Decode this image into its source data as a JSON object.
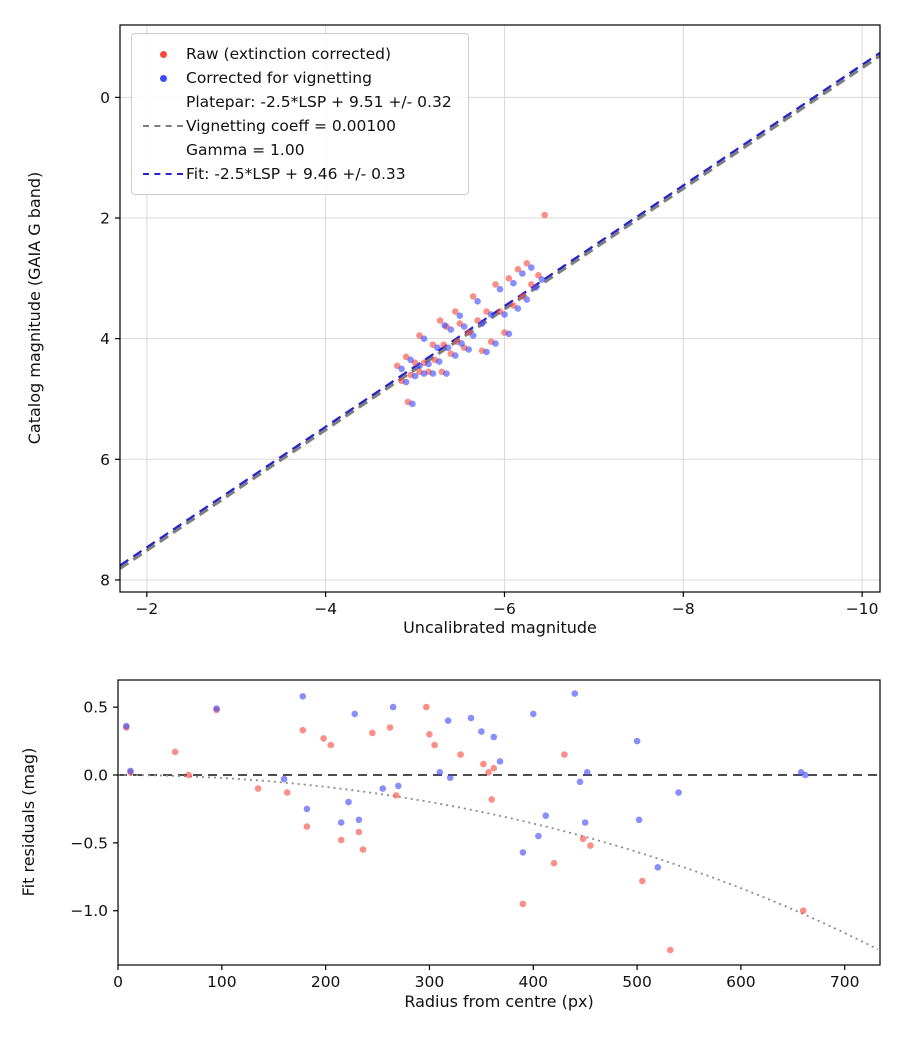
{
  "colors": {
    "raw_point": "#f94a3d",
    "corrected_point": "#3d4af9",
    "platepar_line": "#7f7f7f",
    "fit_line": "#2424cc",
    "grid": "#d9d9d9",
    "axis": "#000000",
    "tick_text": "#111111",
    "zero_line": "#4d4d4d",
    "model_curve": "#8c8c8c",
    "background": "#ffffff"
  },
  "legend": {
    "raw_label": "Raw (extinction corrected)",
    "corrected_label": "Corrected for vignetting",
    "platepar_label_line1": "Platepar: -2.5*LSP + 9.51 +/- 0.32",
    "platepar_label_line2": "Vignetting coeff = 0.00100",
    "platepar_label_line3": "Gamma = 1.00",
    "fit_label": "Fit: -2.5*LSP + 9.46 +/- 0.33"
  },
  "chart_data": [
    {
      "type": "scatter",
      "name": "photometric-fit",
      "xlabel": "Uncalibrated magnitude",
      "ylabel": "Catalog magnitude (GAIA G band)",
      "xlim": [
        -1.7,
        -10.2
      ],
      "ylim_top_to_bottom": [
        -1.2,
        8.2
      ],
      "x_inverted": true,
      "y_inverted": true,
      "grid": true,
      "x_ticks": [
        {
          "v": -2,
          "label": "−2"
        },
        {
          "v": -4,
          "label": "−4"
        },
        {
          "v": -6,
          "label": "−6"
        },
        {
          "v": -8,
          "label": "−8"
        },
        {
          "v": -10,
          "label": "−10"
        }
      ],
      "y_ticks": [
        {
          "v": 0,
          "label": "0"
        },
        {
          "v": 2,
          "label": "2"
        },
        {
          "v": 4,
          "label": "4"
        },
        {
          "v": 6,
          "label": "6"
        },
        {
          "v": 8,
          "label": "8"
        }
      ],
      "lines": [
        {
          "name": "platepar",
          "label": "Platepar: -2.5*LSP + 9.51 +/- 0.32, Vignetting coeff = 0.00100, Gamma = 1.00",
          "slope": 1,
          "intercept": 9.51,
          "color_key": "platepar_line",
          "width": 3.2
        },
        {
          "name": "fit",
          "label": "Fit: -2.5*LSP + 9.46 +/- 0.33",
          "slope": 1,
          "intercept": 9.46,
          "color_key": "fit_line",
          "width": 2.2
        }
      ],
      "series": [
        {
          "name": "Raw (extinction corrected)",
          "color_key": "raw_point",
          "points": [
            [
              -4.8,
              4.45
            ],
            [
              -4.85,
              4.7
            ],
            [
              -4.9,
              4.3
            ],
            [
              -4.95,
              4.6
            ],
            [
              -4.92,
              5.05
            ],
            [
              -5.0,
              4.4
            ],
            [
              -5.05,
              4.55
            ],
            [
              -5.05,
              3.95
            ],
            [
              -5.1,
              4.4
            ],
            [
              -5.15,
              4.55
            ],
            [
              -5.2,
              4.1
            ],
            [
              -5.22,
              4.35
            ],
            [
              -5.28,
              3.7
            ],
            [
              -5.3,
              4.55
            ],
            [
              -5.32,
              4.1
            ],
            [
              -5.35,
              3.8
            ],
            [
              -5.4,
              4.25
            ],
            [
              -5.45,
              3.55
            ],
            [
              -5.47,
              4.05
            ],
            [
              -5.5,
              3.75
            ],
            [
              -5.55,
              4.15
            ],
            [
              -5.6,
              3.9
            ],
            [
              -5.65,
              3.3
            ],
            [
              -5.7,
              3.7
            ],
            [
              -5.75,
              4.2
            ],
            [
              -5.8,
              3.55
            ],
            [
              -5.85,
              4.05
            ],
            [
              -5.9,
              3.1
            ],
            [
              -5.95,
              3.55
            ],
            [
              -6.0,
              3.9
            ],
            [
              -6.05,
              3.0
            ],
            [
              -6.1,
              3.45
            ],
            [
              -6.15,
              2.85
            ],
            [
              -6.2,
              3.3
            ],
            [
              -6.25,
              2.75
            ],
            [
              -6.3,
              3.1
            ],
            [
              -6.38,
              2.95
            ],
            [
              -6.45,
              1.95
            ]
          ]
        },
        {
          "name": "Corrected for vignetting",
          "color_key": "corrected_point",
          "points": [
            [
              -4.85,
              4.5
            ],
            [
              -4.9,
              4.72
            ],
            [
              -4.95,
              4.35
            ],
            [
              -5.0,
              4.62
            ],
            [
              -4.97,
              5.08
            ],
            [
              -5.05,
              4.45
            ],
            [
              -5.1,
              4.58
            ],
            [
              -5.1,
              4.0
            ],
            [
              -5.15,
              4.42
            ],
            [
              -5.2,
              4.58
            ],
            [
              -5.25,
              4.15
            ],
            [
              -5.27,
              4.38
            ],
            [
              -5.33,
              3.78
            ],
            [
              -5.35,
              4.58
            ],
            [
              -5.37,
              4.15
            ],
            [
              -5.4,
              3.85
            ],
            [
              -5.45,
              4.28
            ],
            [
              -5.5,
              3.62
            ],
            [
              -5.52,
              4.08
            ],
            [
              -5.55,
              3.8
            ],
            [
              -5.6,
              4.18
            ],
            [
              -5.65,
              3.95
            ],
            [
              -5.7,
              3.38
            ],
            [
              -5.75,
              3.75
            ],
            [
              -5.8,
              4.22
            ],
            [
              -5.85,
              3.6
            ],
            [
              -5.9,
              4.08
            ],
            [
              -5.95,
              3.18
            ],
            [
              -6.0,
              3.6
            ],
            [
              -6.05,
              3.92
            ],
            [
              -6.1,
              3.08
            ],
            [
              -6.15,
              3.5
            ],
            [
              -6.2,
              2.92
            ],
            [
              -6.25,
              3.35
            ],
            [
              -6.3,
              2.82
            ],
            [
              -6.35,
              3.15
            ],
            [
              -6.42,
              3.02
            ]
          ]
        }
      ]
    },
    {
      "type": "scatter",
      "name": "fit-residuals-vs-radius",
      "xlabel": "Radius from centre (px)",
      "ylabel": "Fit residuals (mag)",
      "xlim": [
        0,
        734
      ],
      "ylim_top_to_bottom": [
        0.7,
        -1.4
      ],
      "grid": false,
      "x_ticks": [
        {
          "v": 0,
          "label": "0"
        },
        {
          "v": 100,
          "label": "100"
        },
        {
          "v": 200,
          "label": "200"
        },
        {
          "v": 300,
          "label": "300"
        },
        {
          "v": 400,
          "label": "400"
        },
        {
          "v": 500,
          "label": "500"
        },
        {
          "v": 600,
          "label": "600"
        },
        {
          "v": 700,
          "label": "700"
        }
      ],
      "y_ticks": [
        {
          "v": 0.5,
          "label": "0.5"
        },
        {
          "v": 0.0,
          "label": "0.0"
        },
        {
          "v": -0.5,
          "label": "−0.5"
        },
        {
          "v": -1.0,
          "label": "−1.0"
        }
      ],
      "zero_line": {
        "y": 0,
        "color_key": "zero_line"
      },
      "model_curve": {
        "coeff": 0.001,
        "description": "residual = 10*log10(cos(coeff*r))",
        "color_key": "model_curve"
      },
      "series": [
        {
          "name": "Raw (extinction corrected)",
          "color_key": "raw_point",
          "points": [
            [
              8,
              0.35
            ],
            [
              12,
              0.02
            ],
            [
              55,
              0.17
            ],
            [
              68,
              0.0
            ],
            [
              95,
              0.48
            ],
            [
              135,
              -0.1
            ],
            [
              163,
              -0.13
            ],
            [
              178,
              0.33
            ],
            [
              182,
              -0.38
            ],
            [
              198,
              0.27
            ],
            [
              205,
              0.22
            ],
            [
              215,
              -0.48
            ],
            [
              232,
              -0.42
            ],
            [
              236,
              -0.55
            ],
            [
              245,
              0.31
            ],
            [
              262,
              0.35
            ],
            [
              268,
              -0.15
            ],
            [
              297,
              0.5
            ],
            [
              300,
              0.3
            ],
            [
              305,
              0.22
            ],
            [
              330,
              0.15
            ],
            [
              352,
              0.08
            ],
            [
              357,
              0.02
            ],
            [
              360,
              -0.18
            ],
            [
              362,
              0.05
            ],
            [
              390,
              -0.95
            ],
            [
              420,
              -0.65
            ],
            [
              430,
              0.15
            ],
            [
              448,
              -0.47
            ],
            [
              455,
              -0.52
            ],
            [
              505,
              -0.78
            ],
            [
              532,
              -1.29
            ],
            [
              660,
              -1.0
            ]
          ]
        },
        {
          "name": "Corrected for vignetting",
          "color_key": "corrected_point",
          "points": [
            [
              8,
              0.36
            ],
            [
              12,
              0.03
            ],
            [
              95,
              0.49
            ],
            [
              160,
              -0.03
            ],
            [
              178,
              0.58
            ],
            [
              182,
              -0.25
            ],
            [
              215,
              -0.35
            ],
            [
              222,
              -0.2
            ],
            [
              228,
              0.45
            ],
            [
              232,
              -0.33
            ],
            [
              255,
              -0.1
            ],
            [
              265,
              0.5
            ],
            [
              270,
              -0.08
            ],
            [
              310,
              0.02
            ],
            [
              318,
              0.4
            ],
            [
              320,
              -0.02
            ],
            [
              340,
              0.42
            ],
            [
              350,
              0.32
            ],
            [
              362,
              0.28
            ],
            [
              368,
              0.1
            ],
            [
              390,
              -0.57
            ],
            [
              400,
              0.45
            ],
            [
              405,
              -0.45
            ],
            [
              412,
              -0.3
            ],
            [
              440,
              0.6
            ],
            [
              445,
              -0.05
            ],
            [
              450,
              -0.35
            ],
            [
              452,
              0.02
            ],
            [
              500,
              0.25
            ],
            [
              502,
              -0.33
            ],
            [
              520,
              -0.68
            ],
            [
              540,
              -0.13
            ],
            [
              658,
              0.02
            ],
            [
              662,
              0.0
            ]
          ]
        }
      ]
    }
  ]
}
